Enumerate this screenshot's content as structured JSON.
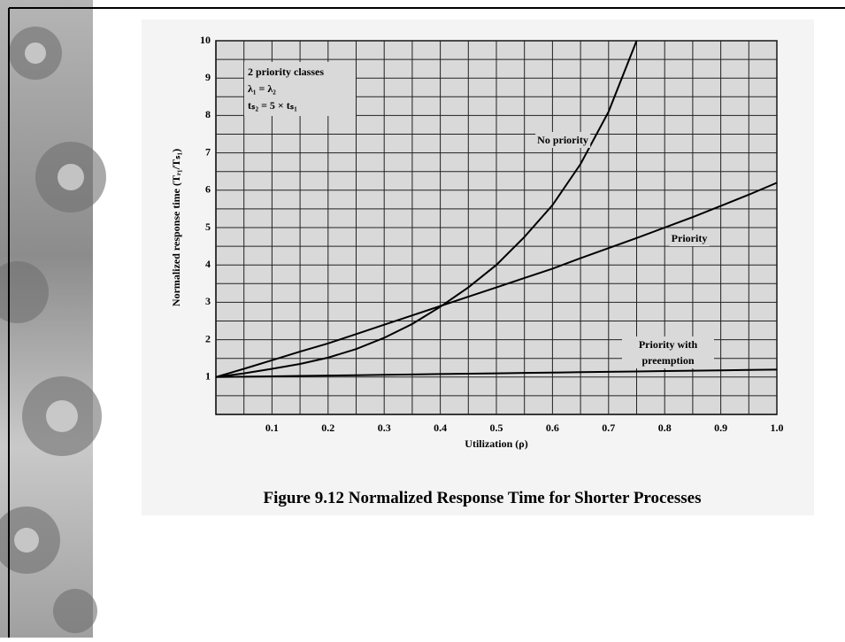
{
  "chart_data": {
    "type": "line",
    "title": "Figure 9.12 Normalized Response Time for Shorter Processes",
    "x_label": "Utilization (ρ)",
    "y_label": "Normalized response time (Tᵣ₁/Tₛ₁)",
    "annotations": [
      "2 priority classes",
      "λ₁ = λ₂",
      "tₛ₂ = 5 × tₛ₁"
    ],
    "x": [
      0,
      0.05,
      0.1,
      0.15,
      0.2,
      0.25,
      0.3,
      0.35,
      0.4,
      0.45,
      0.5,
      0.55,
      0.6,
      0.65,
      0.7,
      0.75,
      0.8,
      0.85,
      0.9,
      0.95,
      1.0
    ],
    "series": [
      {
        "name": "No priority",
        "color": "#000000",
        "values": [
          1,
          1.1,
          1.22,
          1.35,
          1.52,
          1.75,
          2.05,
          2.42,
          2.88,
          3.4,
          4.0,
          4.75,
          5.6,
          6.7,
          8.1,
          10,
          null,
          null,
          null,
          null,
          null
        ]
      },
      {
        "name": "Priority",
        "color": "#000000",
        "values": [
          1,
          1.22,
          1.45,
          1.68,
          1.9,
          2.15,
          2.4,
          2.65,
          2.9,
          3.15,
          3.4,
          3.65,
          3.9,
          4.18,
          4.45,
          4.72,
          5.0,
          5.28,
          5.58,
          5.88,
          6.2
        ]
      },
      {
        "name": "Priority with preemption",
        "color": "#000000",
        "values": [
          1,
          1.01,
          1.02,
          1.03,
          1.04,
          1.05,
          1.06,
          1.07,
          1.08,
          1.09,
          1.1,
          1.11,
          1.12,
          1.13,
          1.14,
          1.15,
          1.16,
          1.17,
          1.18,
          1.19,
          1.2
        ]
      }
    ],
    "xlim": [
      0,
      1
    ],
    "xticks": [
      0.1,
      0.2,
      0.3,
      0.4,
      0.5,
      0.6,
      0.7,
      0.8,
      0.9,
      {
        "value": 1,
        "label": "1.0"
      }
    ],
    "ylim": [
      0,
      10
    ],
    "yticks": [
      1,
      2,
      3,
      4,
      5,
      6,
      7,
      8,
      9,
      10
    ],
    "grid": true
  }
}
